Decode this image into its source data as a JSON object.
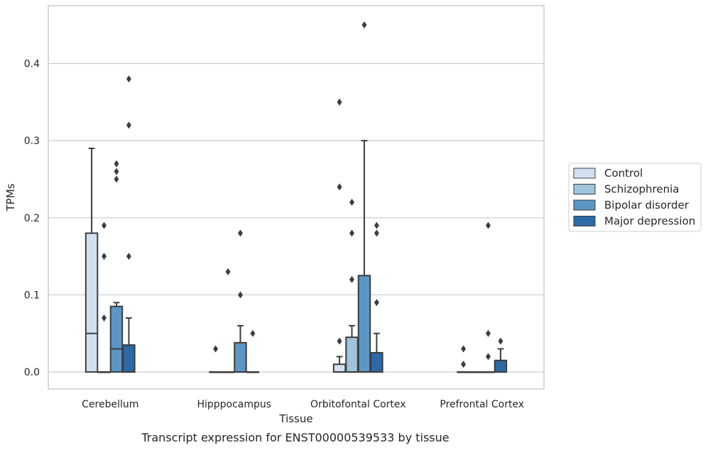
{
  "chart_data": {
    "type": "box",
    "title": "",
    "caption": "Transcript expression for ENST00000539533 by tissue",
    "xlabel": "Tissue",
    "ylabel": "TPMs",
    "ylim": [
      -0.022,
      0.475
    ],
    "yticks": [
      0.0,
      0.1,
      0.2,
      0.3,
      0.4
    ],
    "ytick_labels": [
      "0.0",
      "0.1",
      "0.2",
      "0.3",
      "0.4"
    ],
    "grid": true,
    "legend_position": "right",
    "categories": [
      "Cerebellum",
      "Hipppocampus",
      "Orbitofontal Cortex",
      "Prefrontal Cortex"
    ],
    "series": [
      {
        "name": "Control",
        "color": "#d1e1f0",
        "boxes": [
          {
            "q1": 0.0,
            "median": 0.05,
            "q3": 0.18,
            "whisker_low": 0.0,
            "whisker_high": 0.29,
            "outliers": []
          },
          {
            "q1": 0.0,
            "median": 0.0,
            "q3": 0.0,
            "whisker_low": 0.0,
            "whisker_high": 0.0,
            "outliers": [
              0.03
            ]
          },
          {
            "q1": 0.0,
            "median": 0.0,
            "q3": 0.01,
            "whisker_low": 0.0,
            "whisker_high": 0.02,
            "outliers": [
              0.04,
              0.24,
              0.35
            ]
          },
          {
            "q1": 0.0,
            "median": 0.0,
            "q3": 0.0,
            "whisker_low": 0.0,
            "whisker_high": 0.0,
            "outliers": [
              0.01,
              0.03
            ]
          }
        ]
      },
      {
        "name": "Schizophrenia",
        "color": "#9ec4de",
        "boxes": [
          {
            "q1": 0.0,
            "median": 0.0,
            "q3": 0.0,
            "whisker_low": 0.0,
            "whisker_high": 0.0,
            "outliers": [
              0.07,
              0.15,
              0.19
            ]
          },
          {
            "q1": 0.0,
            "median": 0.0,
            "q3": 0.0,
            "whisker_low": 0.0,
            "whisker_high": 0.0,
            "outliers": [
              0.13
            ]
          },
          {
            "q1": 0.0,
            "median": 0.0,
            "q3": 0.045,
            "whisker_low": 0.0,
            "whisker_high": 0.06,
            "outliers": [
              0.12,
              0.18,
              0.22
            ]
          },
          {
            "q1": 0.0,
            "median": 0.0,
            "q3": 0.0,
            "whisker_low": 0.0,
            "whisker_high": 0.0,
            "outliers": []
          }
        ]
      },
      {
        "name": "Bipolar disorder",
        "color": "#5b97c6",
        "boxes": [
          {
            "q1": 0.0,
            "median": 0.03,
            "q3": 0.085,
            "whisker_low": 0.0,
            "whisker_high": 0.09,
            "outliers": [
              0.25,
              0.26,
              0.27
            ]
          },
          {
            "q1": 0.0,
            "median": 0.0,
            "q3": 0.038,
            "whisker_low": 0.0,
            "whisker_high": 0.06,
            "outliers": [
              0.1,
              0.18
            ]
          },
          {
            "q1": 0.0,
            "median": 0.0,
            "q3": 0.125,
            "whisker_low": 0.0,
            "whisker_high": 0.3,
            "outliers": [
              0.45
            ]
          },
          {
            "q1": 0.0,
            "median": 0.0,
            "q3": 0.0,
            "whisker_low": 0.0,
            "whisker_high": 0.0,
            "outliers": [
              0.02,
              0.05,
              0.19
            ]
          }
        ]
      },
      {
        "name": "Major depression",
        "color": "#2c6aa5",
        "boxes": [
          {
            "q1": 0.0,
            "median": 0.0,
            "q3": 0.035,
            "whisker_low": 0.0,
            "whisker_high": 0.07,
            "outliers": [
              0.15,
              0.32,
              0.38
            ]
          },
          {
            "q1": 0.0,
            "median": 0.0,
            "q3": 0.0,
            "whisker_low": 0.0,
            "whisker_high": 0.0,
            "outliers": [
              0.05
            ]
          },
          {
            "q1": 0.0,
            "median": 0.0,
            "q3": 0.025,
            "whisker_low": 0.0,
            "whisker_high": 0.05,
            "outliers": [
              0.09,
              0.18,
              0.19
            ]
          },
          {
            "q1": 0.0,
            "median": 0.0,
            "q3": 0.015,
            "whisker_low": 0.0,
            "whisker_high": 0.03,
            "outliers": [
              0.04
            ]
          }
        ]
      }
    ]
  }
}
